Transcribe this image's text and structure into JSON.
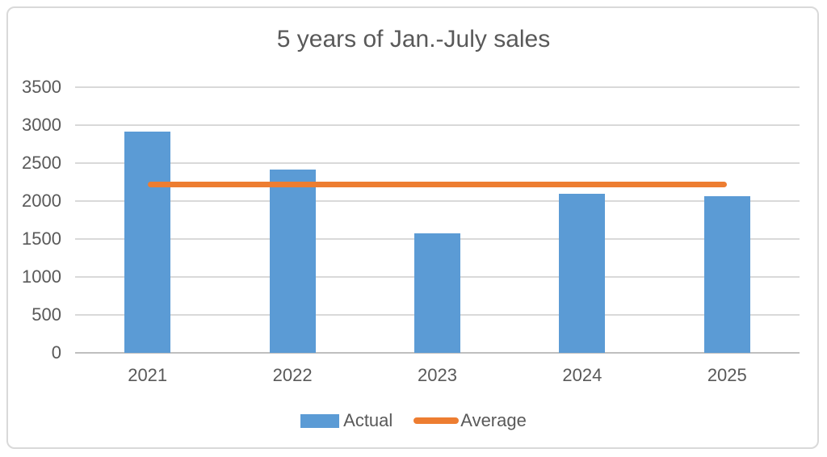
{
  "chart_data": {
    "type": "bar",
    "title": "5 years of Jan.-July sales",
    "categories": [
      "2021",
      "2022",
      "2023",
      "2024",
      "2025"
    ],
    "series": [
      {
        "name": "Actual",
        "type": "bar",
        "color": "#5B9BD5",
        "values": [
          2920,
          2420,
          1570,
          2100,
          2060
        ]
      },
      {
        "name": "Average",
        "type": "line",
        "color": "#ED7D31",
        "values": [
          2214,
          2214,
          2214,
          2214,
          2214
        ]
      }
    ],
    "xlabel": "",
    "ylabel": "",
    "ylim": [
      0,
      3500
    ],
    "yticks": [
      0,
      500,
      1000,
      1500,
      2000,
      2500,
      3000,
      3500
    ],
    "grid": true,
    "legend_position": "bottom",
    "legend": [
      "Actual",
      "Average"
    ]
  },
  "theme": {
    "text_color": "#595959",
    "grid_color": "#D9D9D9",
    "axis_color": "#BFBFBF",
    "border_color": "#D9D9D9",
    "background": "#FFFFFF"
  }
}
